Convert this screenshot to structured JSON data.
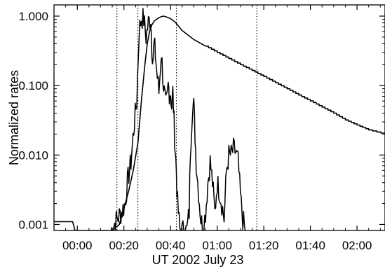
{
  "chart_data": {
    "type": "line",
    "title": "",
    "xlabel": "UT 2002 July 23",
    "ylabel": "Normalized rates",
    "y_scale": "log",
    "grid": false,
    "x_tick_labels": [
      "00:00",
      "00:20",
      "00:40",
      "01:00",
      "01:20",
      "01:40",
      "02:00"
    ],
    "x_ticks_min": [
      0,
      20,
      40,
      60,
      80,
      100,
      120
    ],
    "y_tick_labels": [
      "0.001",
      "0.010",
      "0.100",
      "1.000"
    ],
    "y_ticks": [
      0.001,
      0.01,
      0.1,
      1.0
    ],
    "xlim_min": [
      -10,
      132
    ],
    "ylim": [
      0.00082,
      1.45
    ],
    "vertical_markers_min": [
      17,
      26,
      42.5,
      77
    ],
    "series": [
      {
        "style": "smooth",
        "x_min": [
          -10,
          -2,
          -1,
          15,
          18,
          20,
          22,
          24,
          26,
          27.5,
          29,
          30,
          31,
          32,
          33,
          34,
          35,
          36,
          37,
          38,
          40,
          42,
          45,
          50,
          55,
          60,
          65,
          70,
          75,
          80,
          85,
          90,
          95,
          100,
          105,
          110,
          115,
          120,
          125,
          132
        ],
        "values": [
          0.0011,
          0.0011,
          0.00082,
          0.00082,
          0.001,
          0.0017,
          0.003,
          0.006,
          0.015,
          0.06,
          0.2,
          0.4,
          0.6,
          0.75,
          0.85,
          0.9,
          0.95,
          0.98,
          1.0,
          0.98,
          0.92,
          0.82,
          0.62,
          0.46,
          0.37,
          0.3,
          0.245,
          0.2,
          0.165,
          0.135,
          0.11,
          0.09,
          0.073,
          0.06,
          0.049,
          0.04,
          0.032,
          0.027,
          0.023,
          0.02
        ]
      },
      {
        "style": "noisy",
        "x_min": [
          14.5,
          17,
          19,
          20.5,
          21.5,
          23,
          24.5,
          25.5,
          26.5,
          27.5,
          28.5,
          29.5,
          30.5,
          31.5,
          32,
          32.5,
          33,
          33.5,
          34,
          35,
          36,
          37,
          38,
          38.5,
          39,
          39.5,
          40,
          40.5,
          41,
          41.5,
          42,
          42.5,
          43,
          44,
          45,
          46,
          47,
          48,
          48.5,
          49.5,
          50,
          50.5,
          51,
          52,
          53,
          54,
          55,
          56,
          57,
          58,
          59,
          60,
          61,
          62,
          63,
          64,
          65,
          66,
          67,
          68,
          69,
          70,
          71,
          72
        ],
        "values": [
          0.00082,
          0.0012,
          0.0015,
          0.002,
          0.004,
          0.008,
          0.03,
          0.06,
          0.6,
          0.95,
          0.9,
          0.5,
          0.8,
          0.95,
          0.35,
          0.25,
          0.4,
          0.28,
          0.17,
          0.08,
          0.3,
          0.1,
          0.05,
          0.06,
          0.1,
          0.08,
          0.08,
          0.05,
          0.08,
          0.03,
          0.012,
          0.006,
          0.002,
          0.00082,
          0.00082,
          0.00082,
          0.00082,
          0.0015,
          0.012,
          0.06,
          0.05,
          0.02,
          0.008,
          0.003,
          0.0012,
          0.00082,
          0.0015,
          0.004,
          0.008,
          0.004,
          0.0015,
          0.004,
          0.003,
          0.002,
          0.0012,
          0.006,
          0.01,
          0.01,
          0.012,
          0.011,
          0.008,
          0.0025,
          0.0012,
          0.00082
        ]
      }
    ]
  }
}
